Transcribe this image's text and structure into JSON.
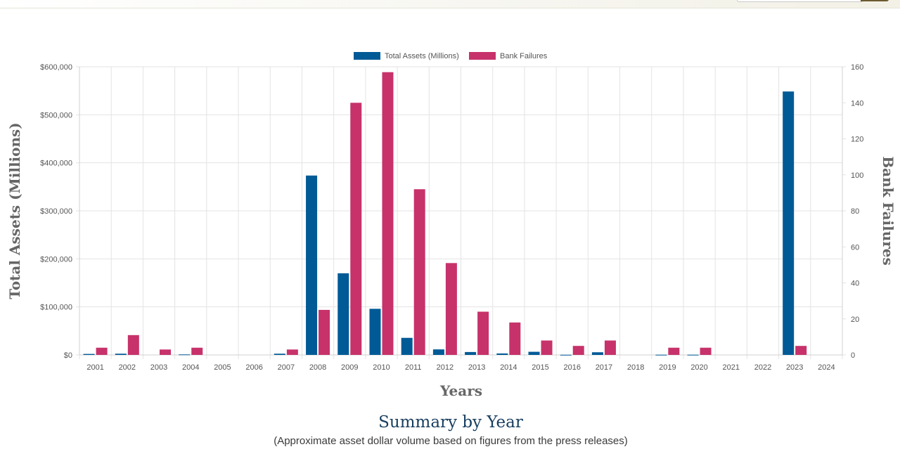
{
  "header": {
    "search": {
      "placeholder": ""
    }
  },
  "colors": {
    "assets": "#005a96",
    "failures": "#c7326b",
    "grid": "#e3e3e3",
    "axis_text": "#555555",
    "axis_title": "#666666",
    "summary_title": "#183e5f"
  },
  "chart_data": {
    "type": "bar",
    "categories": [
      "2001",
      "2002",
      "2003",
      "2004",
      "2005",
      "2006",
      "2007",
      "2008",
      "2009",
      "2010",
      "2011",
      "2012",
      "2013",
      "2014",
      "2015",
      "2016",
      "2017",
      "2018",
      "2019",
      "2020",
      "2021",
      "2022",
      "2023",
      "2024"
    ],
    "series": [
      {
        "name": "Total Assets (Millions)",
        "axis": "left",
        "values": [
          2000,
          2500,
          0,
          1000,
          0,
          0,
          2500,
          373500,
          170000,
          96000,
          35500,
          11500,
          6000,
          3000,
          6500,
          300,
          5500,
          0,
          400,
          400,
          0,
          0,
          548500,
          0
        ]
      },
      {
        "name": "Bank Failures",
        "axis": "right",
        "values": [
          4,
          11,
          3,
          4,
          0,
          0,
          3,
          25,
          140,
          157,
          92,
          51,
          24,
          18,
          8,
          5,
          8,
          0,
          4,
          4,
          0,
          0,
          5,
          0
        ]
      }
    ],
    "title": "",
    "xlabel": "Years",
    "ylabel": "Total Assets (Millions)",
    "y2label": "Bank Failures",
    "ylim": [
      0,
      600000
    ],
    "y2lim": [
      0,
      160
    ],
    "yticks": [
      0,
      100000,
      200000,
      300000,
      400000,
      500000,
      600000
    ],
    "ytick_labels": [
      "$0",
      "$100,000",
      "$200,000",
      "$300,000",
      "$400,000",
      "$500,000",
      "$600,000"
    ],
    "y2ticks": [
      0,
      20,
      40,
      60,
      80,
      100,
      120,
      140,
      160
    ],
    "y2tick_labels": [
      "0",
      "20",
      "40",
      "60",
      "80",
      "100",
      "120",
      "140",
      "160"
    ],
    "grid": true,
    "legend_position": "top-center"
  },
  "summary": {
    "title": "Summary by Year",
    "subtitle": "(Approximate asset dollar volume based on figures from the press releases)"
  }
}
